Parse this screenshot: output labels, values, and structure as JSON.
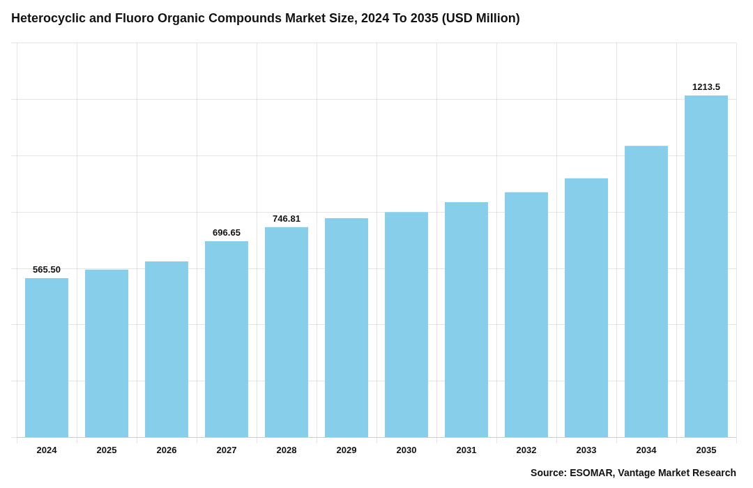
{
  "chart_data": {
    "type": "bar",
    "title": "Heterocyclic and Fluoro Organic Compounds Market Size, 2024 To 2035 (USD Million)",
    "annotations": [
      "Source: ESOMAR, Vantage Market Research"
    ],
    "categories": [
      "2024",
      "2025",
      "2026",
      "2027",
      "2028",
      "2029",
      "2030",
      "2031",
      "2032",
      "2033",
      "2034",
      "2035"
    ],
    "values": [
      565.5,
      596.0,
      625.0,
      696.65,
      746.81,
      778.0,
      800.0,
      835.0,
      870.0,
      920.0,
      1035.0,
      1213.5
    ],
    "value_labels": [
      "565.50",
      null,
      null,
      "696.65",
      "746.81",
      null,
      null,
      null,
      null,
      null,
      null,
      "1213.5"
    ],
    "color": "#87CEEB",
    "ylim": [
      0,
      1400
    ],
    "yticks": [
      0,
      200,
      400,
      600,
      800,
      1000,
      1200,
      1400
    ],
    "grid": true,
    "tick_labels": "x"
  }
}
